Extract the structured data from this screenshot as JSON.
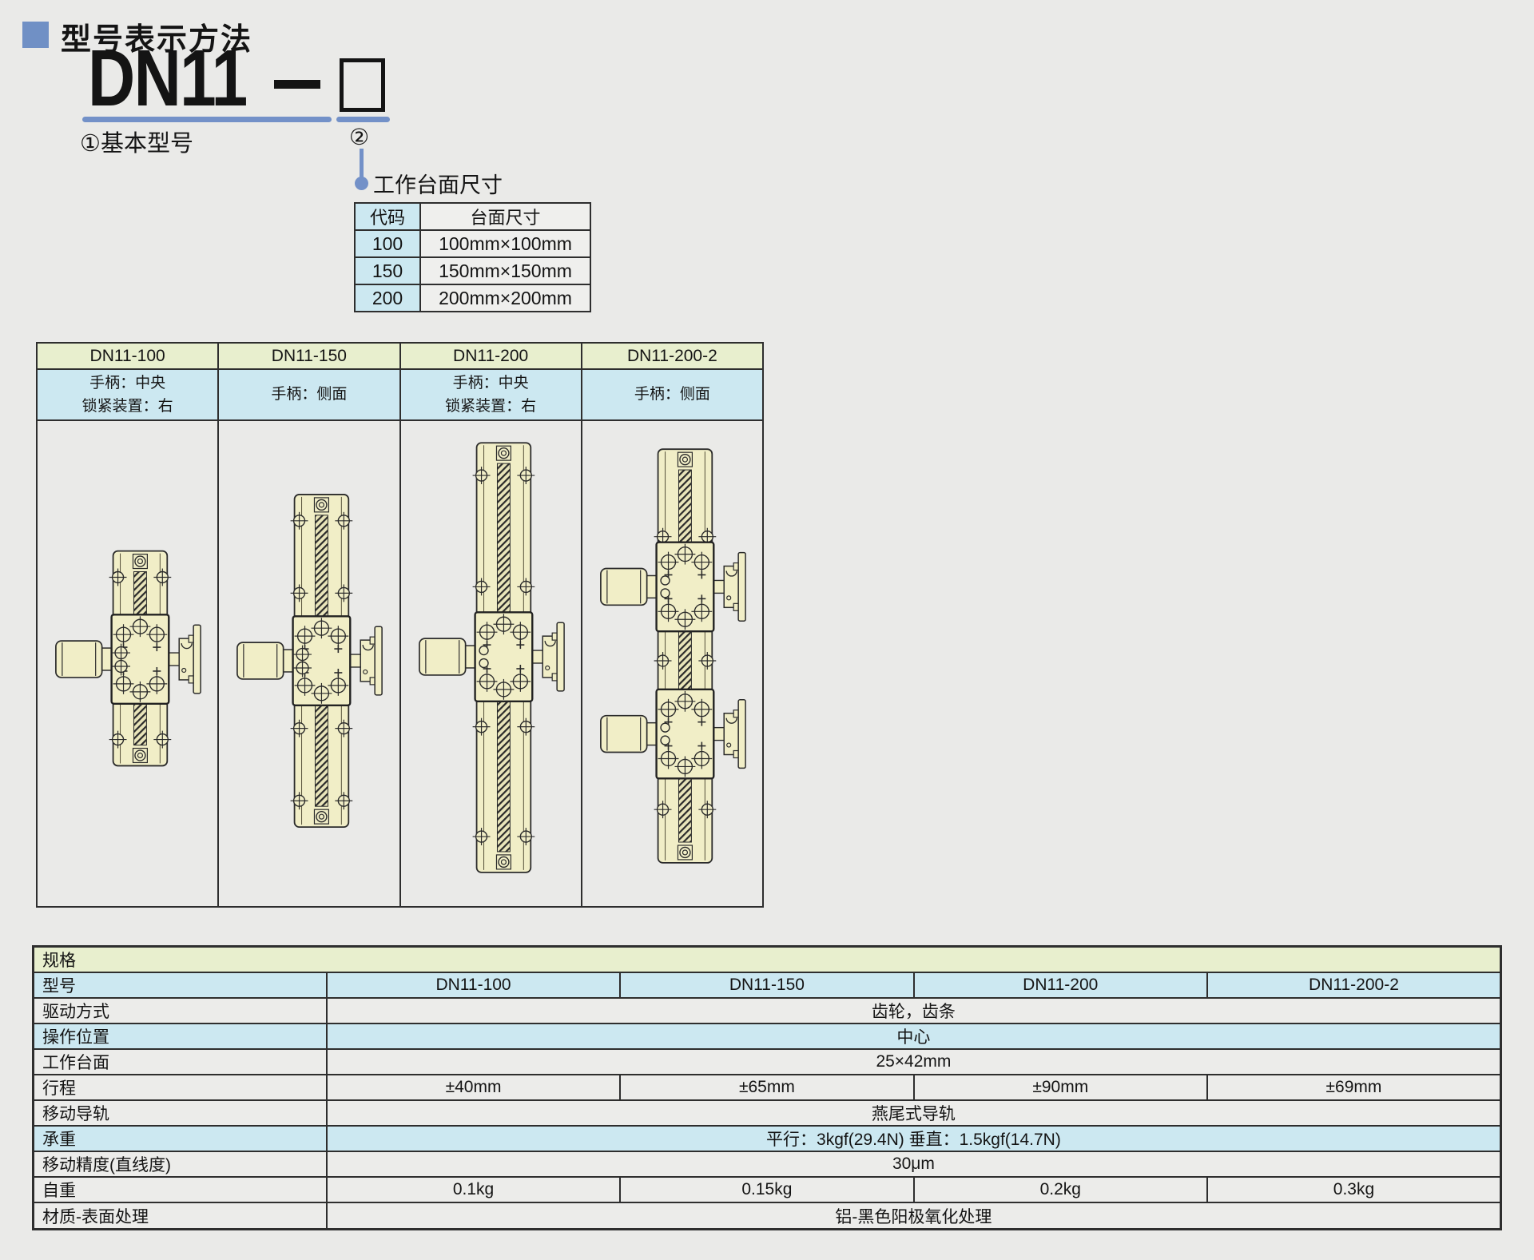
{
  "header": {
    "title": "型号表示方法"
  },
  "model_code": {
    "base": "DN11",
    "label_base": "①基本型号",
    "label_suffix": "②",
    "pointer_label": "工作台面尺寸"
  },
  "size_table": {
    "col_headers": [
      "代码",
      "台面尺寸"
    ],
    "rows": [
      {
        "code": "100",
        "size": "100mm×100mm"
      },
      {
        "code": "150",
        "size": "150mm×150mm"
      },
      {
        "code": "200",
        "size": "200mm×200mm"
      }
    ]
  },
  "drawing_table": {
    "columns": [
      {
        "model": "DN11-100",
        "line1": "手柄：中央",
        "line2": "锁紧装置：右"
      },
      {
        "model": "DN11-150",
        "line1": "手柄：侧面",
        "line2": ""
      },
      {
        "model": "DN11-200",
        "line1": "手柄：中央",
        "line2": "锁紧装置：右"
      },
      {
        "model": "DN11-200-2",
        "line1": "手柄：侧面",
        "line2": ""
      }
    ]
  },
  "spec_table": {
    "section_title": "规格",
    "row_model": {
      "label": "型号",
      "values": [
        "DN11-100",
        "DN11-150",
        "DN11-200",
        "DN11-200-2"
      ]
    },
    "row_drive": {
      "label": "驱动方式",
      "value": "齿轮，齿条"
    },
    "row_position": {
      "label": "操作位置",
      "value": "中心"
    },
    "row_worktable": {
      "label": "工作台面",
      "value": "25×42mm"
    },
    "row_travel": {
      "label": "行程",
      "values": [
        "±40mm",
        "±65mm",
        "±90mm",
        "±69mm"
      ]
    },
    "row_guide": {
      "label": "移动导轨",
      "value": "燕尾式导轨"
    },
    "row_load": {
      "label": "承重",
      "value": "平行：3kgf(29.4N) 垂直：1.5kgf(14.7N)"
    },
    "row_accuracy": {
      "label": "移动精度(直线度)",
      "value": "30μm"
    },
    "row_weight": {
      "label": "自重",
      "values": [
        "0.1kg",
        "0.15kg",
        "0.2kg",
        "0.3kg"
      ]
    },
    "row_material": {
      "label": "材质-表面处理",
      "value": "铝-黑色阳极氧化处理"
    }
  },
  "colors": {
    "accent_blue": "#7391c8",
    "header_green": "#e8efce",
    "tint_blue": "#cce8f1",
    "drawing_cream": "#f1eec7",
    "page_bg": "#eaeae8"
  }
}
